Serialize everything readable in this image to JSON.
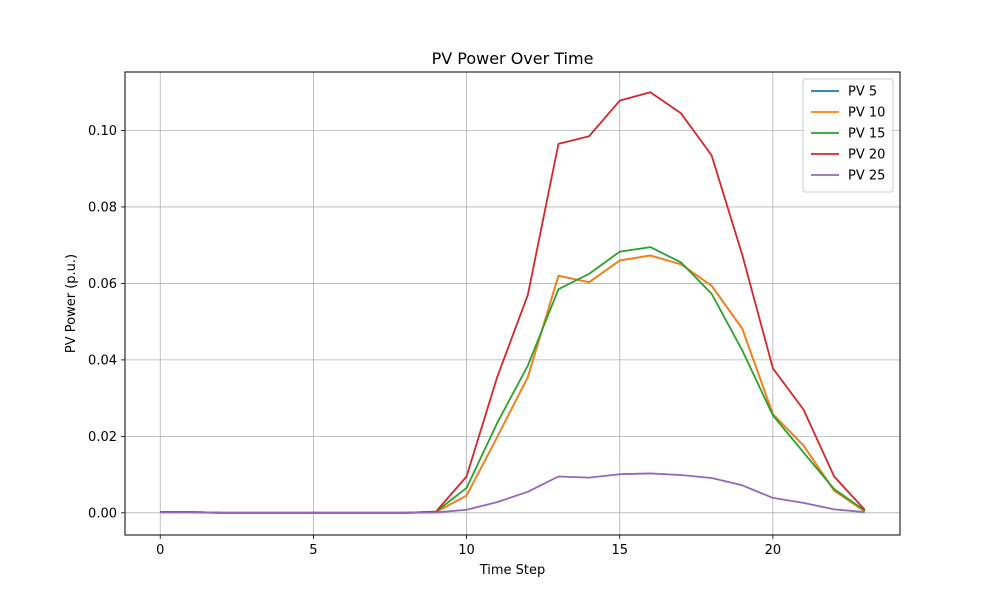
{
  "chart_data": {
    "type": "line",
    "title": "PV Power Over Time",
    "xlabel": "Time Step",
    "ylabel": "PV Power (p.u.)",
    "xlim": [
      -1.15,
      24.15
    ],
    "ylim": [
      -0.0058,
      0.1153
    ],
    "xticks": [
      0,
      5,
      10,
      15,
      20
    ],
    "yticks": [
      0.0,
      0.02,
      0.04,
      0.06,
      0.08,
      0.1
    ],
    "ytick_labels": [
      "0.00",
      "0.02",
      "0.04",
      "0.06",
      "0.08",
      "0.10"
    ],
    "grid": true,
    "legend_position": "top-right",
    "x": [
      0,
      1,
      2,
      3,
      4,
      5,
      6,
      7,
      8,
      9,
      10,
      11,
      12,
      13,
      14,
      15,
      16,
      17,
      18,
      19,
      20,
      21,
      22,
      23
    ],
    "series": [
      {
        "name": "PV 5",
        "color": "#1f77b4",
        "values": [
          0.0002,
          0.0002,
          0,
          0,
          0,
          0,
          0,
          0,
          0,
          0.0002,
          0.0045,
          0.0198,
          0.0355,
          0.062,
          0.0603,
          0.066,
          0.0673,
          0.065,
          0.0594,
          0.0482,
          0.0258,
          0.0176,
          0.0058,
          0.0004
        ]
      },
      {
        "name": "PV 10",
        "color": "#ff7f0e",
        "values": [
          0.0002,
          0.0002,
          0,
          0,
          0,
          0,
          0,
          0,
          0,
          0.0002,
          0.0045,
          0.0198,
          0.0355,
          0.062,
          0.0603,
          0.066,
          0.0673,
          0.065,
          0.0594,
          0.0482,
          0.0258,
          0.0176,
          0.0058,
          0.0004
        ]
      },
      {
        "name": "PV 15",
        "color": "#2ca02c",
        "values": [
          0.0002,
          0.0002,
          0,
          0,
          0,
          0,
          0,
          0,
          0,
          0.0003,
          0.0065,
          0.0235,
          0.0385,
          0.0585,
          0.0625,
          0.0683,
          0.0695,
          0.0655,
          0.0573,
          0.0425,
          0.0255,
          0.0158,
          0.0062,
          0.0006
        ]
      },
      {
        "name": "PV 20",
        "color": "#d62728",
        "values": [
          0.0002,
          0.0002,
          0,
          0,
          0,
          0,
          0,
          0,
          0,
          0.0003,
          0.0095,
          0.0355,
          0.057,
          0.0965,
          0.0985,
          0.1078,
          0.11,
          0.1045,
          0.0935,
          0.0675,
          0.0378,
          0.027,
          0.0095,
          0.0008
        ]
      },
      {
        "name": "PV 25",
        "color": "#9467bd",
        "values": [
          0.0001,
          0.0001,
          0,
          0,
          0,
          0,
          0,
          0,
          0,
          0.0001,
          0.0008,
          0.0028,
          0.0055,
          0.0095,
          0.0092,
          0.0101,
          0.0103,
          0.0099,
          0.0091,
          0.0072,
          0.0039,
          0.0026,
          0.0009,
          0.0002
        ]
      }
    ]
  }
}
